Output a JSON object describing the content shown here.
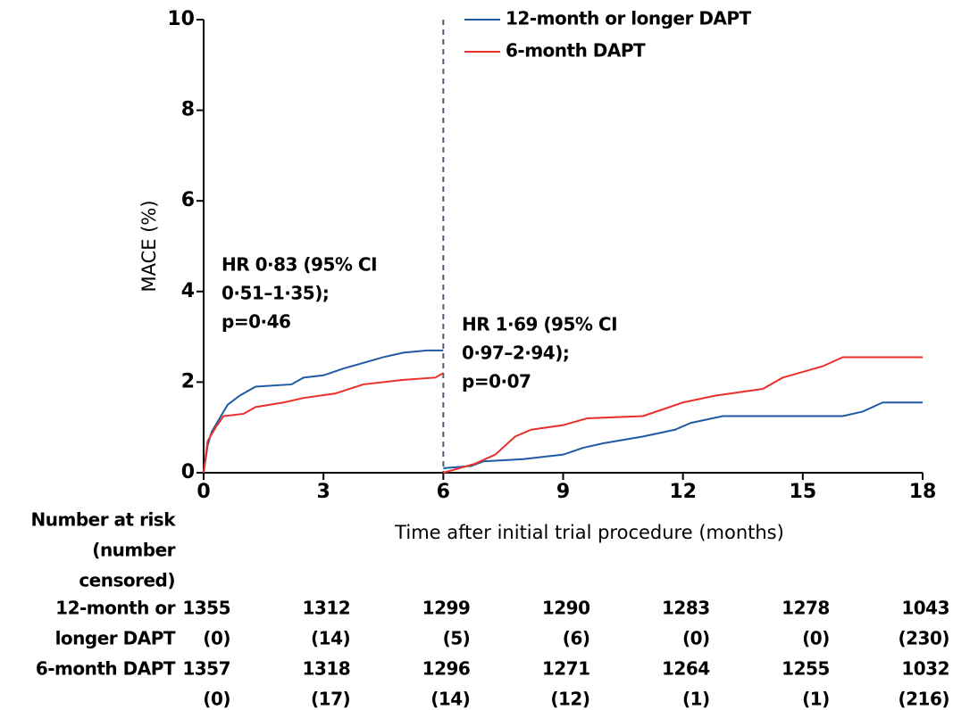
{
  "chart_data": {
    "type": "line",
    "x_label": "Time after initial trial procedure (months)",
    "y_label": "MACE (%)",
    "xlim": [
      0,
      18
    ],
    "xticks": [
      0,
      3,
      6,
      9,
      12,
      15,
      18
    ],
    "ylim": [
      0,
      10
    ],
    "yticks": [
      0,
      2,
      4,
      6,
      8,
      10
    ],
    "vline": 6,
    "series": [
      {
        "name": "12-month or longer DAPT",
        "color": "#1f5aa6",
        "x": [
          0,
          0.1,
          0.2,
          0.4,
          0.6,
          0.9,
          1.3,
          2.2,
          2.5,
          3,
          3.5,
          4.5,
          5,
          5.6,
          6,
          6,
          6,
          6.7,
          7,
          8,
          9,
          9.5,
          10,
          11,
          11.8,
          12.2,
          13,
          16,
          16.5,
          17,
          18
        ],
        "values": [
          0,
          0.6,
          0.9,
          1.2,
          1.5,
          1.7,
          1.9,
          1.95,
          2.1,
          2.15,
          2.3,
          2.55,
          2.65,
          2.7,
          2.7,
          null,
          0.1,
          0.15,
          0.25,
          0.3,
          0.4,
          0.55,
          0.65,
          0.8,
          0.95,
          1.1,
          1.25,
          1.25,
          1.35,
          1.55,
          1.55
        ]
      },
      {
        "name": "6-month DAPT",
        "color": "#e8302a",
        "x": [
          0,
          0.1,
          0.3,
          0.5,
          1,
          1.3,
          2,
          2.5,
          3.3,
          4,
          5,
          5.8,
          6,
          6,
          6,
          6.8,
          7.3,
          7.8,
          8.2,
          9,
          9.6,
          11,
          11.5,
          12,
          12.8,
          14,
          14.5,
          15.5,
          16,
          18
        ],
        "values": [
          0,
          0.7,
          1.0,
          1.25,
          1.3,
          1.45,
          1.55,
          1.65,
          1.75,
          1.95,
          2.05,
          2.1,
          2.2,
          null,
          0,
          0.2,
          0.4,
          0.8,
          0.95,
          1.05,
          1.2,
          1.25,
          1.4,
          1.55,
          1.7,
          1.85,
          2.1,
          2.35,
          2.55,
          2.55
        ]
      }
    ],
    "annotations": [
      [
        "HR 0·83 (95% CI",
        "0·51–1·35);",
        "p=0·46"
      ],
      [
        "HR 1·69 (95% CI",
        "0·97–2·94);",
        "p=0·07"
      ]
    ],
    "risk_table": {
      "header": [
        "Number at risk",
        "(number",
        "censored)"
      ],
      "groups": [
        {
          "label": [
            "12-month or",
            "longer DAPT"
          ],
          "at_risk": [
            1355,
            1312,
            1299,
            1290,
            1283,
            1278,
            1043
          ],
          "censored": [
            "(0)",
            "(14)",
            "(5)",
            "(6)",
            "(0)",
            "(0)",
            "(230)"
          ]
        },
        {
          "label": [
            "6-month DAPT"
          ],
          "at_risk": [
            1357,
            1318,
            1296,
            1271,
            1264,
            1255,
            1032
          ],
          "censored": [
            "(0)",
            "(17)",
            "(14)",
            "(12)",
            "(1)",
            "(1)",
            "(216)"
          ]
        }
      ]
    }
  }
}
